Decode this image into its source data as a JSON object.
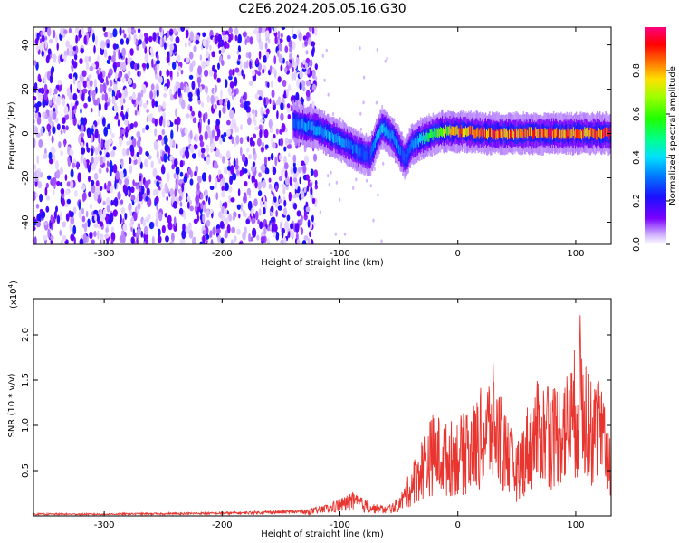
{
  "title": "C2E6.2024.205.05.16.G30",
  "chart_data": [
    {
      "type": "heatmap",
      "title": "C2E6.2024.205.05.16.G30",
      "xlabel": "Height of straight line (km)",
      "ylabel": "Frequency (Hz)",
      "xlim": [
        -360,
        130
      ],
      "ylim": [
        -50,
        48
      ],
      "xticks": [
        -300,
        -200,
        -100,
        0,
        100
      ],
      "yticks": [
        -40,
        -20,
        0,
        20,
        40
      ],
      "colorbar": {
        "label": "Normalized spectral amplitude",
        "range": [
          0.0,
          1.0
        ],
        "ticks": [
          "0.0",
          "0.2",
          "0.4",
          "0.6",
          "0.8"
        ],
        "colormap": "rainbow (white - violet - blue - cyan - green - yellow - red - magenta)"
      },
      "signal_ridge": {
        "x": [
          -140,
          -120,
          -100,
          -85,
          -75,
          -65,
          -55,
          -45,
          -40,
          -30,
          -15,
          0,
          30,
          60,
          90,
          130
        ],
        "y": [
          5,
          2,
          -3,
          -8,
          -10,
          3,
          -2,
          -12,
          -5,
          -2,
          1,
          1,
          0,
          0,
          0,
          0
        ],
        "amplitude": [
          0.3,
          0.35,
          0.35,
          0.3,
          0.25,
          0.4,
          0.35,
          0.25,
          0.3,
          0.45,
          0.6,
          0.8,
          0.85,
          0.85,
          0.85,
          0.85
        ]
      },
      "noise_region_x": [
        -360,
        -120
      ],
      "noise_amplitude": [
        0.02,
        0.15
      ]
    },
    {
      "type": "line",
      "xlabel": "Height of straight line (km)",
      "ylabel": "SNR (10 * v/v)",
      "y_multiplier_label": "(x10",
      "y_multiplier_exp": "4",
      "y_multiplier_close": ")",
      "xlim": [
        -360,
        130
      ],
      "ylim": [
        0,
        2.4
      ],
      "xticks": [
        -300,
        -200,
        -100,
        0,
        100
      ],
      "yticks": [
        0.5,
        1.0,
        1.5,
        2.0
      ],
      "color": "#e8352f",
      "series": [
        {
          "x": [
            -360,
            -300,
            -200,
            -130,
            -110,
            -100,
            -90,
            -80,
            -70,
            -60,
            -50,
            -40,
            -30,
            -20,
            -10,
            0,
            10,
            20,
            30,
            40,
            50,
            60,
            70,
            80,
            90,
            95,
            100,
            105,
            110,
            115,
            120,
            125,
            130
          ],
          "y": [
            0.02,
            0.02,
            0.03,
            0.05,
            0.1,
            0.15,
            0.2,
            0.15,
            0.1,
            0.08,
            0.15,
            0.4,
            0.7,
            0.9,
            0.8,
            0.85,
            0.9,
            1.1,
            1.3,
            0.9,
            0.6,
            1.0,
            1.2,
            1.1,
            1.3,
            1.2,
            1.5,
            1.8,
            1.3,
            1.1,
            1.2,
            0.9,
            0.8
          ]
        }
      ]
    }
  ]
}
